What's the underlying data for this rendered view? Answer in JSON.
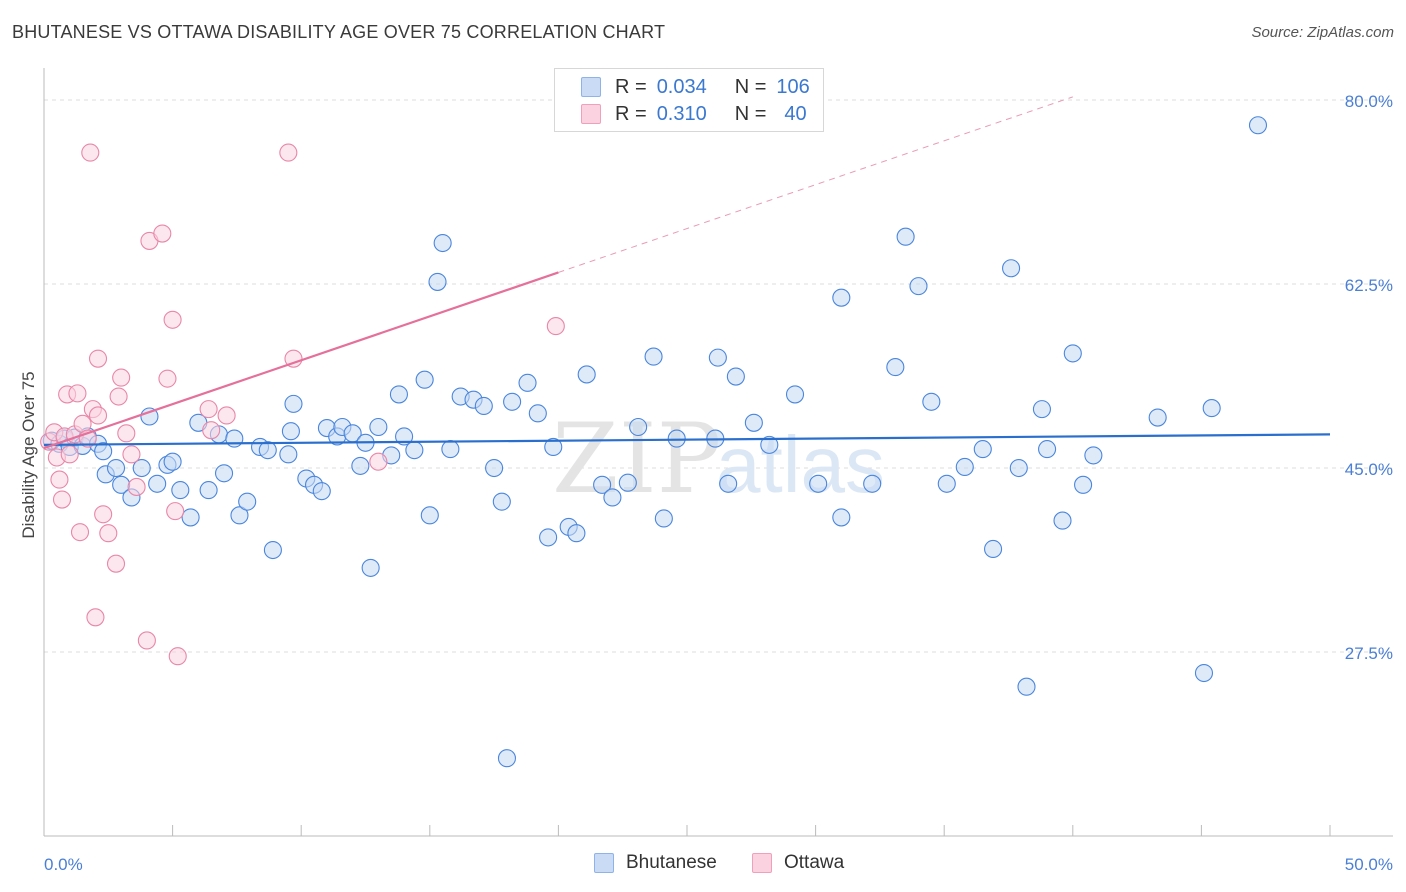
{
  "title": "BHUTANESE VS OTTAWA DISABILITY AGE OVER 75 CORRELATION CHART",
  "source": "Source: ZipAtlas.com",
  "watermark": {
    "zip": "ZIP",
    "atlas": "atlas"
  },
  "legend": {
    "rows": [
      {
        "r_label": "R =",
        "r_value": "0.034",
        "n_label": "N =",
        "n_value": "106",
        "color": "#8fb3e8",
        "fill": "#c9dbf5"
      },
      {
        "r_label": "R =",
        "r_value": "0.310",
        "n_label": "N =",
        "n_value": "40",
        "color": "#f0a0bb",
        "fill": "#fbd3e0"
      }
    ]
  },
  "bottom_legend": [
    {
      "label": "Bhutanese",
      "color": "#8fb3e8",
      "fill": "#c9dbf5"
    },
    {
      "label": "Ottawa",
      "color": "#f0a0bb",
      "fill": "#fbd3e0"
    }
  ],
  "chart_data": {
    "type": "scatter",
    "xlabel": "",
    "ylabel": "Disability Age Over 75",
    "xlim": [
      0,
      50
    ],
    "ylim": [
      10,
      82
    ],
    "x_tick_labels": [
      "0.0%",
      "50.0%"
    ],
    "y_ticks": [
      27.5,
      45.0,
      62.5,
      80.0
    ],
    "y_tick_labels": [
      "27.5%",
      "45.0%",
      "62.5%",
      "80.0%"
    ],
    "grid": "horizontal dashed",
    "series": [
      {
        "name": "Bhutanese",
        "color": "#4a86dd",
        "fill": "#c5d9f4",
        "trend": {
          "x": [
            0,
            50
          ],
          "y": [
            47.2,
            48.2
          ],
          "color": "#2a6fcd"
        },
        "points": [
          [
            0.3,
            47.6
          ],
          [
            0.6,
            47.3
          ],
          [
            0.8,
            47.8
          ],
          [
            1.0,
            47.0
          ],
          [
            1.2,
            47.9
          ],
          [
            1.5,
            47.1
          ],
          [
            1.7,
            48.0
          ],
          [
            2.1,
            47.3
          ],
          [
            2.3,
            46.6
          ],
          [
            2.4,
            44.4
          ],
          [
            2.8,
            45.0
          ],
          [
            3.0,
            43.4
          ],
          [
            3.4,
            42.2
          ],
          [
            3.8,
            45.0
          ],
          [
            4.1,
            49.9
          ],
          [
            4.4,
            43.5
          ],
          [
            4.8,
            45.3
          ],
          [
            5.0,
            45.6
          ],
          [
            5.3,
            42.9
          ],
          [
            5.7,
            40.3
          ],
          [
            6.0,
            49.3
          ],
          [
            6.4,
            42.9
          ],
          [
            6.8,
            48.2
          ],
          [
            7.0,
            44.5
          ],
          [
            7.4,
            47.8
          ],
          [
            7.6,
            40.5
          ],
          [
            7.9,
            41.8
          ],
          [
            8.4,
            47.0
          ],
          [
            8.7,
            46.7
          ],
          [
            8.9,
            37.2
          ],
          [
            9.5,
            46.3
          ],
          [
            9.6,
            48.5
          ],
          [
            9.7,
            51.1
          ],
          [
            10.2,
            44.0
          ],
          [
            10.5,
            43.4
          ],
          [
            10.8,
            42.8
          ],
          [
            11.0,
            48.8
          ],
          [
            11.4,
            48.0
          ],
          [
            11.6,
            48.9
          ],
          [
            12.0,
            48.3
          ],
          [
            12.3,
            45.2
          ],
          [
            12.5,
            47.4
          ],
          [
            12.7,
            35.5
          ],
          [
            13.0,
            48.9
          ],
          [
            13.5,
            46.2
          ],
          [
            13.8,
            52.0
          ],
          [
            14.0,
            48.0
          ],
          [
            14.4,
            46.7
          ],
          [
            14.8,
            53.4
          ],
          [
            15.0,
            40.5
          ],
          [
            15.3,
            62.7
          ],
          [
            15.5,
            66.4
          ],
          [
            15.8,
            46.8
          ],
          [
            16.2,
            51.8
          ],
          [
            16.7,
            51.5
          ],
          [
            17.1,
            50.9
          ],
          [
            17.5,
            45.0
          ],
          [
            17.8,
            41.8
          ],
          [
            18.0,
            17.4
          ],
          [
            18.2,
            51.3
          ],
          [
            18.8,
            53.1
          ],
          [
            19.2,
            50.2
          ],
          [
            19.6,
            38.4
          ],
          [
            19.8,
            47.0
          ],
          [
            20.4,
            39.4
          ],
          [
            20.7,
            38.8
          ],
          [
            21.1,
            53.9
          ],
          [
            21.7,
            43.4
          ],
          [
            22.1,
            42.2
          ],
          [
            22.7,
            43.6
          ],
          [
            23.1,
            48.9
          ],
          [
            23.7,
            55.6
          ],
          [
            24.1,
            40.2
          ],
          [
            24.6,
            47.8
          ],
          [
            26.1,
            47.8
          ],
          [
            26.2,
            55.5
          ],
          [
            26.6,
            43.5
          ],
          [
            26.9,
            53.7
          ],
          [
            27.6,
            49.3
          ],
          [
            28.2,
            47.2
          ],
          [
            29.2,
            52.0
          ],
          [
            30.1,
            43.5
          ],
          [
            31.0,
            40.3
          ],
          [
            31.0,
            61.2
          ],
          [
            32.2,
            43.5
          ],
          [
            33.1,
            54.6
          ],
          [
            33.5,
            67.0
          ],
          [
            34.0,
            62.3
          ],
          [
            34.5,
            51.3
          ],
          [
            35.1,
            43.5
          ],
          [
            35.8,
            45.1
          ],
          [
            36.5,
            46.8
          ],
          [
            36.9,
            37.3
          ],
          [
            37.6,
            64.0
          ],
          [
            37.9,
            45.0
          ],
          [
            38.2,
            24.2
          ],
          [
            38.8,
            50.6
          ],
          [
            39.0,
            46.8
          ],
          [
            39.6,
            40.0
          ],
          [
            40.0,
            55.9
          ],
          [
            40.4,
            43.4
          ],
          [
            40.8,
            46.2
          ],
          [
            43.3,
            49.8
          ],
          [
            45.1,
            25.5
          ],
          [
            45.4,
            50.7
          ],
          [
            47.2,
            77.6
          ]
        ]
      },
      {
        "name": "Ottawa",
        "color": "#e887a8",
        "fill": "#fbd3e0",
        "trend": {
          "x": [
            0,
            20.0
          ],
          "y": [
            46.9,
            63.6
          ],
          "color": "#e5709a"
        },
        "trend_ext": {
          "x": [
            20.0,
            40.0
          ],
          "y": [
            63.6,
            80.3
          ]
        },
        "points": [
          [
            0.2,
            47.5
          ],
          [
            0.4,
            48.4
          ],
          [
            0.5,
            46.0
          ],
          [
            0.6,
            43.9
          ],
          [
            0.7,
            42.0
          ],
          [
            0.8,
            48.0
          ],
          [
            0.9,
            52.0
          ],
          [
            1.0,
            46.3
          ],
          [
            1.2,
            48.2
          ],
          [
            1.3,
            52.1
          ],
          [
            1.4,
            38.9
          ],
          [
            1.5,
            49.2
          ],
          [
            1.7,
            47.8
          ],
          [
            1.8,
            75.0
          ],
          [
            1.9,
            50.6
          ],
          [
            2.0,
            30.8
          ],
          [
            2.1,
            50.0
          ],
          [
            2.1,
            55.4
          ],
          [
            2.3,
            40.6
          ],
          [
            2.5,
            38.8
          ],
          [
            2.8,
            35.9
          ],
          [
            2.9,
            51.8
          ],
          [
            3.0,
            53.6
          ],
          [
            3.2,
            48.3
          ],
          [
            3.4,
            46.3
          ],
          [
            3.6,
            43.2
          ],
          [
            4.0,
            28.6
          ],
          [
            4.1,
            66.6
          ],
          [
            4.6,
            67.3
          ],
          [
            4.8,
            53.5
          ],
          [
            5.0,
            59.1
          ],
          [
            5.1,
            40.9
          ],
          [
            5.2,
            27.1
          ],
          [
            6.4,
            50.6
          ],
          [
            6.5,
            48.6
          ],
          [
            7.1,
            50.0
          ],
          [
            9.5,
            75.0
          ],
          [
            9.7,
            55.4
          ],
          [
            13.0,
            45.6
          ],
          [
            19.9,
            58.5
          ]
        ]
      }
    ]
  }
}
